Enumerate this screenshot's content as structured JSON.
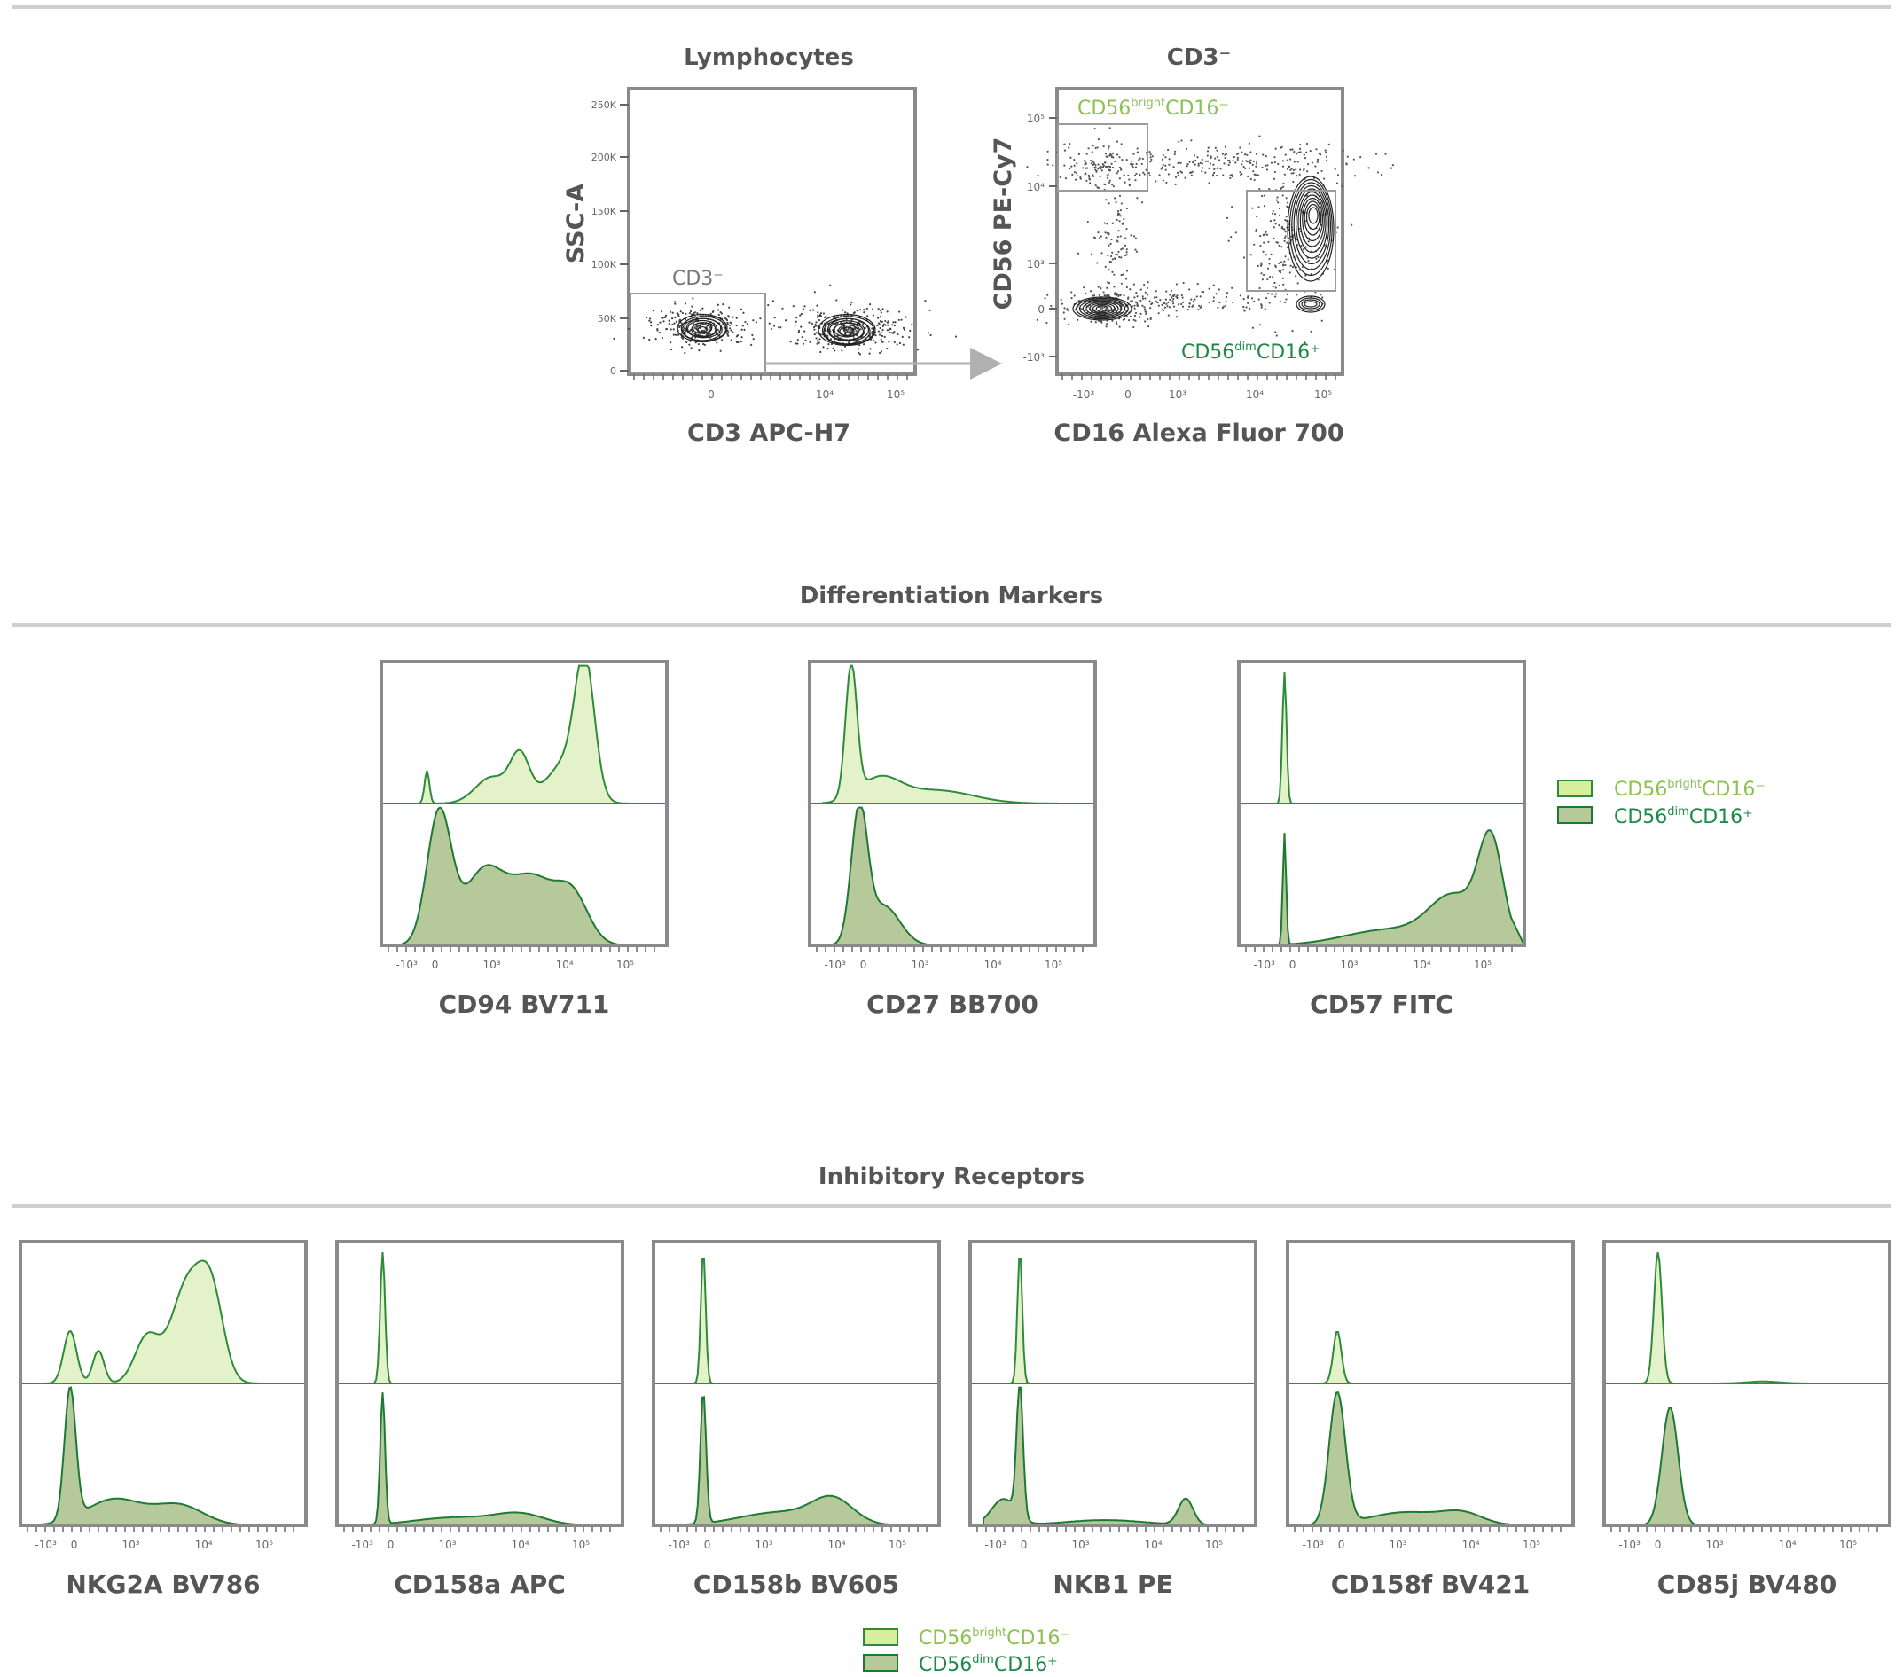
{
  "colors": {
    "bright_fill": "#e3f2c8",
    "bright_stroke": "#2e8b3a",
    "dim_fill": "#b5c99a",
    "dim_stroke": "#1e7a32",
    "bright_text": "#8cc152",
    "dim_text": "#1e8a45",
    "frame": "#8a8a8a",
    "contour": "#333333"
  },
  "gating": {
    "plot1": {
      "title": "Lymphocytes",
      "xlabel": "CD3 APC-H7",
      "ylabel": "SSC-A",
      "yticks": [
        "250K",
        "200K",
        "150K",
        "100K",
        "50K",
        "0"
      ],
      "xticks": [
        "0",
        "10⁴",
        "10⁵"
      ],
      "gate_label": "CD3⁻"
    },
    "plot2": {
      "title": "CD3⁻",
      "xlabel": "CD16 Alexa Fluor 700",
      "ylabel": "CD56 PE-Cy7",
      "yticks": [
        "10⁵",
        "10⁴",
        "10³",
        "0",
        "-10³"
      ],
      "xticks": [
        "-10³",
        "0",
        "10³",
        "10⁴",
        "10⁵"
      ],
      "gate_bright": {
        "base": "CD56",
        "sup": "bright",
        "rest": "CD16⁻"
      },
      "gate_dim": {
        "base": "CD56",
        "sup": "dim",
        "rest": "CD16⁺"
      }
    }
  },
  "sections": {
    "differentiation": "Differentiation Markers",
    "inhibitory": "Inhibitory Receptors"
  },
  "legend": {
    "bright": {
      "base": "CD56",
      "sup": "bright",
      "rest": "CD16⁻"
    },
    "dim": {
      "base": "CD56",
      "sup": "dim",
      "rest": "CD16⁺"
    }
  },
  "hist_xticks": [
    "-10³",
    "0",
    "10³",
    "10⁴",
    "10⁵"
  ],
  "chart_data": [
    {
      "type": "area",
      "xlabel": "CD94 BV711",
      "x": [
        -1000,
        0,
        1000,
        10000,
        100000
      ],
      "series": [
        {
          "name": "CD56brightCD16-",
          "peaks": [
            [
              -0.1,
              0.03,
              0.25
            ],
            [
              0.7,
              0.2,
              0.2
            ],
            [
              1.05,
              0.12,
              0.35
            ],
            [
              1.6,
              0.22,
              0.3
            ],
            [
              1.85,
              0.12,
              1.0
            ]
          ]
        },
        {
          "name": "CD56dimCD16+",
          "peaks": [
            [
              0.05,
              0.15,
              1.0
            ],
            [
              0.6,
              0.25,
              0.55
            ],
            [
              1.2,
              0.28,
              0.5
            ],
            [
              1.7,
              0.2,
              0.35
            ]
          ]
        }
      ]
    },
    {
      "type": "area",
      "xlabel": "CD27 BB700",
      "x": [
        -1000,
        0,
        1000,
        10000,
        100000
      ],
      "series": [
        {
          "name": "CD56brightCD16-",
          "peaks": [
            [
              -0.15,
              0.07,
              1.0
            ],
            [
              0.2,
              0.25,
              0.18
            ],
            [
              0.9,
              0.45,
              0.1
            ]
          ]
        },
        {
          "name": "CD56dimCD16+",
          "peaks": [
            [
              -0.05,
              0.1,
              1.0
            ],
            [
              0.25,
              0.2,
              0.3
            ]
          ]
        }
      ]
    },
    {
      "type": "area",
      "xlabel": "CD57 FITC",
      "x": [
        -1000,
        0,
        1000,
        10000,
        100000
      ],
      "series": [
        {
          "name": "CD56brightCD16-",
          "peaks": [
            [
              -0.1,
              0.025,
              1.0
            ]
          ]
        },
        {
          "name": "CD56dimCD16+",
          "peaks": [
            [
              -0.1,
              0.02,
              0.85
            ],
            [
              1.2,
              0.55,
              0.12
            ],
            [
              2.0,
              0.3,
              0.35
            ],
            [
              2.45,
              0.15,
              0.75
            ]
          ]
        }
      ]
    },
    {
      "type": "area",
      "xlabel": "NKG2A BV786",
      "x": [
        -1000,
        0,
        1000,
        10000,
        100000
      ],
      "series": [
        {
          "name": "CD56brightCD16-",
          "peaks": [
            [
              -0.05,
              0.08,
              0.4
            ],
            [
              0.3,
              0.07,
              0.25
            ],
            [
              0.9,
              0.15,
              0.35
            ],
            [
              1.4,
              0.2,
              0.75
            ],
            [
              1.7,
              0.15,
              0.6
            ]
          ]
        },
        {
          "name": "CD56dimCD16+",
          "peaks": [
            [
              -0.05,
              0.07,
              1.0
            ],
            [
              0.5,
              0.35,
              0.2
            ],
            [
              1.3,
              0.3,
              0.15
            ]
          ]
        }
      ]
    },
    {
      "type": "area",
      "xlabel": "CD158a APC",
      "x": [
        -1000,
        0,
        1000,
        10000,
        100000
      ],
      "series": [
        {
          "name": "CD56brightCD16-",
          "peaks": [
            [
              -0.1,
              0.03,
              1.0
            ]
          ]
        },
        {
          "name": "CD56dimCD16+",
          "peaks": [
            [
              -0.1,
              0.03,
              1.0
            ],
            [
              0.8,
              0.5,
              0.06
            ],
            [
              1.6,
              0.3,
              0.08
            ]
          ]
        }
      ]
    },
    {
      "type": "area",
      "xlabel": "CD158b BV605",
      "x": [
        -1000,
        0,
        1000,
        10000,
        100000
      ],
      "series": [
        {
          "name": "CD56brightCD16-",
          "peaks": [
            [
              -0.05,
              0.03,
              1.0
            ]
          ]
        },
        {
          "name": "CD56dimCD16+",
          "peaks": [
            [
              -0.05,
              0.035,
              1.0
            ],
            [
              0.9,
              0.5,
              0.1
            ],
            [
              1.55,
              0.25,
              0.18
            ]
          ]
        }
      ]
    },
    {
      "type": "area",
      "xlabel": "NKB1 PE",
      "x": [
        -1000,
        0,
        1000,
        10000,
        100000
      ],
      "series": [
        {
          "name": "CD56brightCD16-",
          "peaks": [
            [
              -0.05,
              0.03,
              1.0
            ]
          ]
        },
        {
          "name": "CD56dimCD16+",
          "peaks": [
            [
              -0.05,
              0.04,
              1.0
            ],
            [
              -0.25,
              0.15,
              0.2
            ],
            [
              2.0,
              0.09,
              0.2
            ],
            [
              1.0,
              0.5,
              0.04
            ]
          ]
        }
      ]
    },
    {
      "type": "area",
      "xlabel": "CD158f BV421",
      "x": [
        -1000,
        0,
        1000,
        10000,
        100000
      ],
      "series": [
        {
          "name": "CD56brightCD16-",
          "peaks": [
            [
              -0.05,
              0.05,
              0.4
            ]
          ]
        },
        {
          "name": "CD56dimCD16+",
          "peaks": [
            [
              -0.05,
              0.1,
              1.0
            ],
            [
              0.8,
              0.45,
              0.1
            ],
            [
              1.5,
              0.25,
              0.08
            ]
          ]
        }
      ]
    },
    {
      "type": "area",
      "xlabel": "CD85j BV480",
      "x": [
        -1000,
        0,
        1000,
        10000,
        100000
      ],
      "series": [
        {
          "name": "CD56brightCD16-",
          "peaks": [
            [
              0.0,
              0.05,
              1.0
            ],
            [
              1.3,
              0.2,
              0.015
            ]
          ]
        },
        {
          "name": "CD56dimCD16+",
          "peaks": [
            [
              0.15,
              0.1,
              0.9
            ]
          ]
        }
      ]
    }
  ]
}
